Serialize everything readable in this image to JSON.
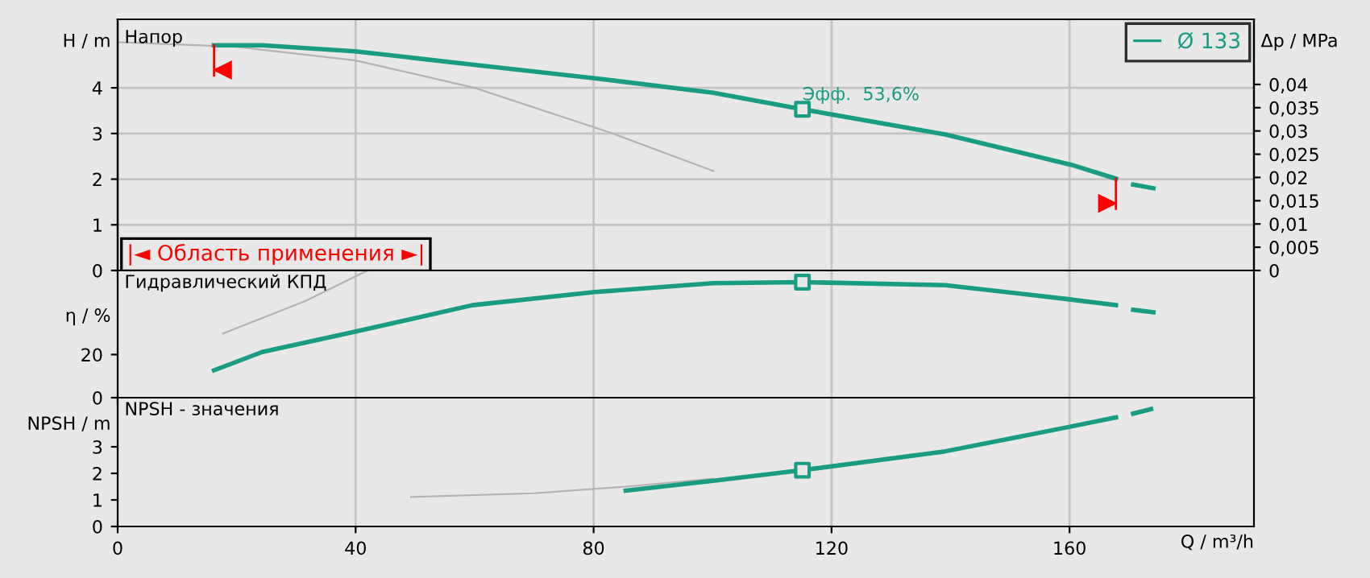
{
  "chart_data": [
    {
      "type": "line",
      "xlim": [
        0,
        191
      ],
      "ylim": [
        0,
        5.5
      ],
      "yticks": [
        0,
        1,
        2,
        3,
        4
      ],
      "ylabel": "H / m",
      "y2label": "Δp / MPa",
      "y2lim": [
        0,
        0.054
      ],
      "y2ticks": [
        0,
        {
          "value": 0.005,
          "label": "0,005"
        },
        {
          "value": 0.01,
          "label": "0,01"
        },
        {
          "value": 0.015,
          "label": "0,015"
        },
        {
          "value": 0.02,
          "label": "0,02"
        },
        {
          "value": 0.025,
          "label": "0,025"
        },
        {
          "value": 0.03,
          "label": "0,03"
        },
        {
          "value": 0.035,
          "label": "0,035"
        },
        {
          "value": 0.04,
          "label": "0,04"
        }
      ],
      "tick_labels": "y",
      "grid": true,
      "legend": "top right",
      "series": [
        {
          "color": "#b4b4b4",
          "x": [
            0,
            20,
            40,
            60,
            83.2,
            100.1
          ],
          "values": [
            5.0,
            4.9,
            4.6,
            4.0,
            3.0,
            2.18
          ]
        },
        {
          "name": "Ø 133",
          "color": "#1a9c84",
          "x": [
            16.2,
            24.3,
            39.9,
            59.6,
            80.2,
            100.1,
            115.1,
            139.1,
            160.4,
            167.8,
            169.2,
            170.7,
            174.1
          ],
          "values": [
            4.93,
            4.93,
            4.8,
            4.51,
            4.21,
            3.89,
            3.53,
            2.98,
            2.31,
            2.01,
            null,
            1.88,
            1.8
          ]
        },
        {
          "type": "scatter",
          "marker": "square",
          "color": "#1a9c84",
          "x": [
            115.1
          ],
          "values": [
            3.53
          ]
        }
      ],
      "ref_lines": [
        {
          "axis": "x",
          "value": 16.2,
          "color": "#ff0000"
        },
        {
          "axis": "x",
          "value": 167.8,
          "color": "#ff0000"
        }
      ],
      "annotations": [
        "Напор",
        "|◄ Область применения ►|",
        {
          "text": "Эфф.  53,6%",
          "x": 115.1,
          "y": 3.53
        }
      ]
    },
    {
      "type": "line",
      "xlim": [
        0,
        191
      ],
      "ylim": [
        0,
        59
      ],
      "yticks": [
        0,
        20
      ],
      "ylabel": "η / %",
      "tick_labels": "y",
      "grid": "x",
      "series": [
        {
          "color": "#b4b4b4",
          "x": [
            17.7,
            31.6,
            42
          ],
          "values": [
            29.8,
            44.9,
            59
          ]
        },
        {
          "color": "#1a9c84",
          "x": [
            16.2,
            24.3,
            39.9,
            59.6,
            80.2,
            100.1,
            115.1,
            139.1,
            159.7,
            167.8,
            169.2,
            170.7,
            174.1
          ],
          "values": [
            12.7,
            21.2,
            30.6,
            42.9,
            49,
            53.1,
            53.6,
            52.2,
            45.7,
            42.9,
            null,
            40.8,
            39.6
          ]
        },
        {
          "type": "scatter",
          "marker": "square",
          "color": "#1a9c84",
          "x": [
            115.1
          ],
          "values": [
            53.6
          ]
        }
      ],
      "annotations": [
        "Гидравлический КПД"
      ]
    },
    {
      "type": "line",
      "xlim": [
        0,
        191
      ],
      "xticks": [
        0,
        40,
        80,
        120,
        160
      ],
      "ylim": [
        0,
        4.85
      ],
      "yticks": [
        0,
        1,
        2,
        3
      ],
      "ylabel": "NPSH / m",
      "xlabel": "Q / m³/h",
      "grid": "x",
      "series": [
        {
          "color": "#b4b4b4",
          "x": [
            49.3,
            70,
            85.4,
            100
          ],
          "values": [
            1.11,
            1.25,
            1.5,
            1.8
          ]
        },
        {
          "color": "#1a9c84",
          "x": [
            85.4,
            100.1,
            115.1,
            139.1,
            159.7,
            167.8,
            169.2,
            170.7,
            173.7
          ],
          "values": [
            1.35,
            1.72,
            2.12,
            2.83,
            3.74,
            4.11,
            null,
            4.25,
            4.42
          ]
        },
        {
          "type": "scatter",
          "marker": "square",
          "color": "#1a9c84",
          "x": [
            115.1
          ],
          "values": [
            2.12
          ]
        }
      ],
      "annotations": [
        "NPSH - значения"
      ]
    }
  ]
}
